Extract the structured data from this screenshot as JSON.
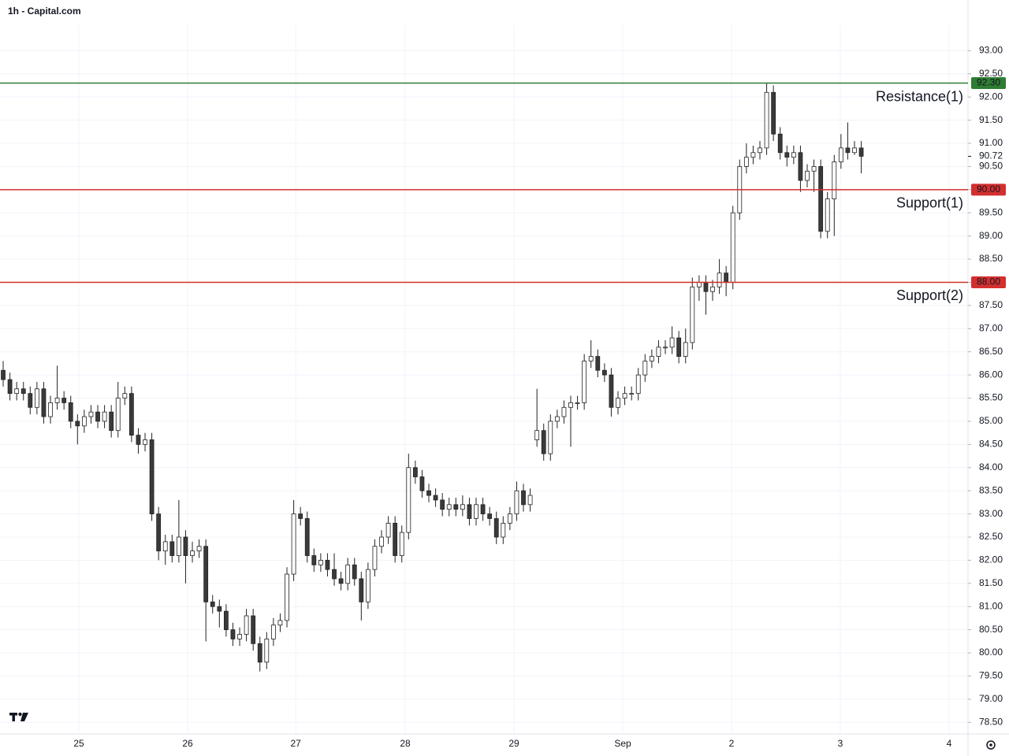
{
  "chart_data": {
    "type": "candlestick",
    "title": "1h - Capital.com",
    "open": [
      86.1,
      85.9,
      85.6,
      85.7,
      85.6,
      85.3,
      85.7,
      85.1,
      85.4,
      85.5,
      85.4,
      85.0,
      84.9,
      85.1,
      85.2,
      85.0,
      85.2,
      84.8,
      85.5,
      85.6,
      84.7,
      84.5,
      84.6,
      83.0,
      82.2,
      82.4,
      82.1,
      82.5,
      82.1,
      82.2,
      82.3,
      81.1,
      81.0,
      80.9,
      80.5,
      80.3,
      80.4,
      80.8,
      80.2,
      79.8,
      80.3,
      80.6,
      80.7,
      81.7,
      83.0,
      82.9,
      82.1,
      81.9,
      82.0,
      81.8,
      81.6,
      81.5,
      81.9,
      81.6,
      81.1,
      81.8,
      82.3,
      82.5,
      82.8,
      82.1,
      82.6,
      84.0,
      83.8,
      83.5,
      83.4,
      83.3,
      83.1,
      83.2,
      83.1,
      83.2,
      82.9,
      83.2,
      83.0,
      82.9,
      82.5,
      82.8,
      83.0,
      83.5,
      83.2,
      84.6,
      84.8,
      84.3,
      85.0,
      85.1,
      85.3,
      85.4,
      85.4,
      86.3,
      86.4,
      86.1,
      86.0,
      85.3,
      85.5,
      85.6,
      85.6,
      86.0,
      86.3,
      86.4,
      86.6,
      86.6,
      86.8,
      86.4,
      86.7,
      87.9,
      88.0,
      87.8,
      87.9,
      88.2,
      88.0,
      89.5,
      90.5,
      90.7,
      90.8,
      90.9,
      92.1,
      91.2,
      90.8,
      90.7,
      90.8,
      90.2,
      90.4,
      90.5,
      89.1,
      89.8,
      90.6,
      90.9,
      90.8,
      90.9
    ],
    "high": [
      86.3,
      86.05,
      85.85,
      85.85,
      85.75,
      85.85,
      85.85,
      85.55,
      86.2,
      85.65,
      85.55,
      85.15,
      85.25,
      85.35,
      85.35,
      85.35,
      85.35,
      85.85,
      85.75,
      85.75,
      84.85,
      84.75,
      84.75,
      83.15,
      82.55,
      82.55,
      83.3,
      82.65,
      82.4,
      82.45,
      82.45,
      81.25,
      81.15,
      81.05,
      80.65,
      80.55,
      80.95,
      80.95,
      80.35,
      80.45,
      80.75,
      80.85,
      81.85,
      83.3,
      83.15,
      83.05,
      82.25,
      82.15,
      82.15,
      82.15,
      81.75,
      82.05,
      82.05,
      81.75,
      81.95,
      82.45,
      82.65,
      82.95,
      82.95,
      82.75,
      84.3,
      84.15,
      83.95,
      83.65,
      83.55,
      83.45,
      83.35,
      83.35,
      83.4,
      83.35,
      83.35,
      83.35,
      83.15,
      83.05,
      82.95,
      83.15,
      83.7,
      83.65,
      83.55,
      85.7,
      84.95,
      85.15,
      85.25,
      85.45,
      85.55,
      85.55,
      86.45,
      86.75,
      86.55,
      86.25,
      86.15,
      85.65,
      85.75,
      85.75,
      86.15,
      86.45,
      86.55,
      86.75,
      86.75,
      87.05,
      86.95,
      87.0,
      88.1,
      88.15,
      88.15,
      88.05,
      88.5,
      88.35,
      89.65,
      90.65,
      91.0,
      90.95,
      91.05,
      92.3,
      92.25,
      91.35,
      90.95,
      90.95,
      90.95,
      90.55,
      90.65,
      90.65,
      89.95,
      90.75,
      91.2,
      91.45,
      91.05,
      91.05
    ],
    "low": [
      85.75,
      85.45,
      85.45,
      85.45,
      85.15,
      85.15,
      84.95,
      84.95,
      85.25,
      85.25,
      84.85,
      84.5,
      84.75,
      84.95,
      84.85,
      84.85,
      84.65,
      84.65,
      85.35,
      84.55,
      84.3,
      84.35,
      82.85,
      82.0,
      81.9,
      81.95,
      81.95,
      81.5,
      81.95,
      82.05,
      80.25,
      80.85,
      80.55,
      80.35,
      80.15,
      80.15,
      80.25,
      80.05,
      79.6,
      79.65,
      80.15,
      80.45,
      80.55,
      81.55,
      82.75,
      81.95,
      81.75,
      81.75,
      81.65,
      81.45,
      81.35,
      81.35,
      81.45,
      80.7,
      80.95,
      81.65,
      82.15,
      82.35,
      81.95,
      81.95,
      82.45,
      83.65,
      83.35,
      83.25,
      83.15,
      82.95,
      82.95,
      82.95,
      82.95,
      82.75,
      82.75,
      82.85,
      82.75,
      82.35,
      82.35,
      82.65,
      82.85,
      83.05,
      83.05,
      84.45,
      84.15,
      84.15,
      84.85,
      84.95,
      84.45,
      85.25,
      85.25,
      86.15,
      85.95,
      85.85,
      85.1,
      85.15,
      85.35,
      85.45,
      85.45,
      85.85,
      86.15,
      86.25,
      86.45,
      86.45,
      86.25,
      86.25,
      86.55,
      87.6,
      87.3,
      87.6,
      87.75,
      87.7,
      87.85,
      89.35,
      90.35,
      90.55,
      90.65,
      90.75,
      91.05,
      90.65,
      90.5,
      90.55,
      89.95,
      90.05,
      89.95,
      88.95,
      88.95,
      89.0,
      90.45,
      90.65,
      90.75,
      90.35
    ],
    "close": [
      85.9,
      85.6,
      85.7,
      85.6,
      85.3,
      85.7,
      85.1,
      85.4,
      85.5,
      85.4,
      85.0,
      84.9,
      85.1,
      85.2,
      85.0,
      85.2,
      84.8,
      85.5,
      85.6,
      84.7,
      84.5,
      84.6,
      83.0,
      82.2,
      82.4,
      82.1,
      82.5,
      82.1,
      82.2,
      82.3,
      81.1,
      81.0,
      80.9,
      80.5,
      80.3,
      80.4,
      80.8,
      80.2,
      79.8,
      80.3,
      80.6,
      80.7,
      81.7,
      83.0,
      82.9,
      82.1,
      81.9,
      82.0,
      81.8,
      81.6,
      81.5,
      81.9,
      81.6,
      81.1,
      81.8,
      82.3,
      82.5,
      82.8,
      82.1,
      82.6,
      84.0,
      83.8,
      83.5,
      83.4,
      83.3,
      83.1,
      83.2,
      83.1,
      83.2,
      82.9,
      83.2,
      83.0,
      82.9,
      82.5,
      82.8,
      83.0,
      83.5,
      83.2,
      83.4,
      84.8,
      84.3,
      85.0,
      85.1,
      85.3,
      85.4,
      85.4,
      86.3,
      86.4,
      86.1,
      86.0,
      85.3,
      85.5,
      85.6,
      85.6,
      86.0,
      86.3,
      86.4,
      86.6,
      86.6,
      86.8,
      86.4,
      86.7,
      87.9,
      88.0,
      87.8,
      87.9,
      88.2,
      88.0,
      89.5,
      90.5,
      90.7,
      90.8,
      90.9,
      92.1,
      91.2,
      90.8,
      90.7,
      90.8,
      90.2,
      90.4,
      90.5,
      89.1,
      89.8,
      90.6,
      90.9,
      90.8,
      90.9,
      90.72
    ],
    "up_color": "#ffffff",
    "down_color": "#3a3a3a",
    "wick_color": "#222222",
    "xlim": [
      -0.47,
      142.8
    ],
    "xticks": [
      {
        "value": 11.2,
        "label": "25"
      },
      {
        "value": 27.3,
        "label": "26"
      },
      {
        "value": 43.3,
        "label": "27"
      },
      {
        "value": 59.5,
        "label": "28"
      },
      {
        "value": 75.6,
        "label": "29"
      },
      {
        "value": 91.7,
        "label": "Sep"
      },
      {
        "value": 107.8,
        "label": "2"
      },
      {
        "value": 123.9,
        "label": "3"
      },
      {
        "value": 140.0,
        "label": "4"
      }
    ],
    "ylim": [
      78.25,
      93.55
    ],
    "yticks": [
      {
        "value": 78.5,
        "label": "78.50"
      },
      {
        "value": 79,
        "label": "79.00"
      },
      {
        "value": 79.5,
        "label": "79.50"
      },
      {
        "value": 80,
        "label": "80.00"
      },
      {
        "value": 80.5,
        "label": "80.50"
      },
      {
        "value": 81,
        "label": "81.00"
      },
      {
        "value": 81.5,
        "label": "81.50"
      },
      {
        "value": 82,
        "label": "82.00"
      },
      {
        "value": 82.5,
        "label": "82.50"
      },
      {
        "value": 83,
        "label": "83.00"
      },
      {
        "value": 83.5,
        "label": "83.50"
      },
      {
        "value": 84,
        "label": "84.00"
      },
      {
        "value": 84.5,
        "label": "84.50"
      },
      {
        "value": 85,
        "label": "85.00"
      },
      {
        "value": 85.5,
        "label": "85.50"
      },
      {
        "value": 86,
        "label": "86.00"
      },
      {
        "value": 86.5,
        "label": "86.50"
      },
      {
        "value": 87,
        "label": "87.00"
      },
      {
        "value": 87.5,
        "label": "87.50"
      },
      {
        "value": 88,
        "label": "88.00"
      },
      {
        "value": 88.5,
        "label": "88.50"
      },
      {
        "value": 89,
        "label": "89.00"
      },
      {
        "value": 89.5,
        "label": "89.50"
      },
      {
        "value": 90,
        "label": "90.00"
      },
      {
        "value": 90.5,
        "label": "90.50"
      },
      {
        "value": 91,
        "label": "91.00"
      },
      {
        "value": 91.5,
        "label": "91.50"
      },
      {
        "value": 92,
        "label": "92.00"
      },
      {
        "value": 92.5,
        "label": "92.50"
      },
      {
        "value": 93,
        "label": "93.00"
      }
    ],
    "grid": true,
    "levels": [
      {
        "name": "Resistance(1)",
        "value": 92.3,
        "value_label": "92.30",
        "color": "#2e7d32"
      },
      {
        "name": "Support(1)",
        "value": 90,
        "value_label": "90.00",
        "color": "#d32f2f"
      },
      {
        "name": "Support(2)",
        "value": 88,
        "value_label": "88.00",
        "color": "#d32f2f"
      }
    ],
    "last_price": {
      "value": 90.72,
      "label": "90.72"
    }
  }
}
